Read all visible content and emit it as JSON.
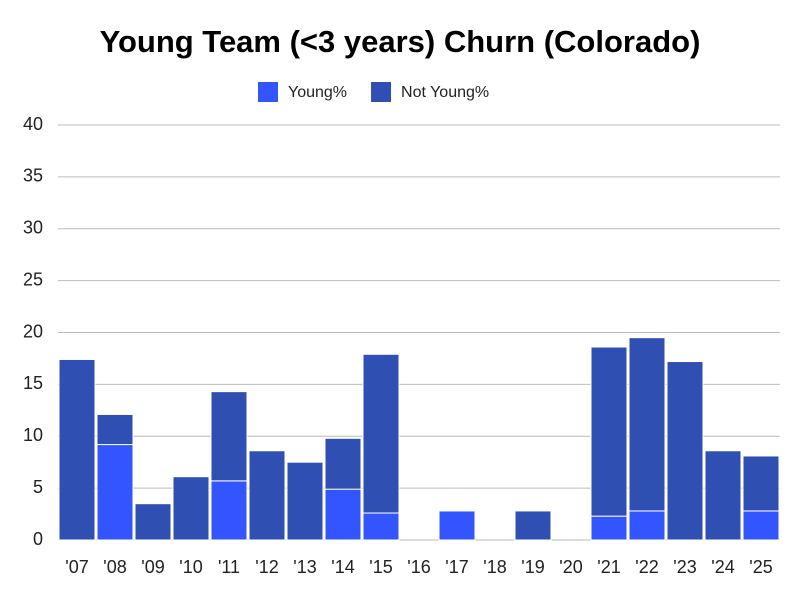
{
  "chart_data": {
    "type": "stacked_bar",
    "title": "Young Team (<3 years) Churn (Colorado)",
    "categories": [
      "'07",
      "'08",
      "'09",
      "'10",
      "'11",
      "'12",
      "'13",
      "'14",
      "'15",
      "'16",
      "'17",
      "'18",
      "'19",
      "'20",
      "'21",
      "'22",
      "'23",
      "'24",
      "'25"
    ],
    "series": [
      {
        "name": "Young%",
        "color": "#3355ff",
        "values": [
          0,
          9.2,
          0,
          0,
          5.7,
          0,
          0,
          4.9,
          2.6,
          0,
          2.8,
          0,
          0,
          0,
          2.3,
          2.8,
          0,
          0,
          2.8
        ]
      },
      {
        "name": "Not Young%",
        "color": "#2f4fb2",
        "values": [
          17.4,
          2.9,
          3.5,
          6.1,
          8.6,
          8.6,
          7.5,
          4.9,
          15.3,
          0,
          0,
          0,
          2.8,
          0,
          16.3,
          16.7,
          17.2,
          8.6,
          5.3
        ]
      }
    ],
    "ylim": [
      0,
      40
    ],
    "yticks": [
      0,
      5,
      10,
      15,
      20,
      25,
      30,
      35,
      40
    ],
    "grid": true,
    "legend": "top"
  }
}
